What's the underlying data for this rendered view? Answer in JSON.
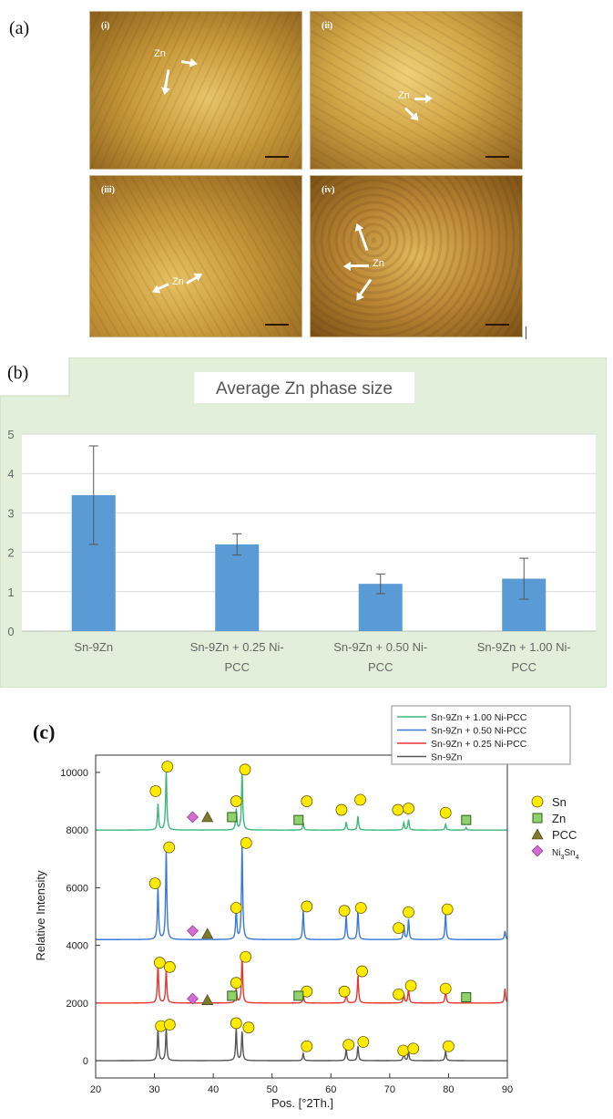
{
  "panel_labels": {
    "a": "(a)",
    "b": "(b)",
    "c": "(c)"
  },
  "micrographs": [
    {
      "label": "(i)",
      "annotation": "Zn"
    },
    {
      "label": "(ii)",
      "annotation": "Zn"
    },
    {
      "label": "(iii)",
      "annotation": "Zn"
    },
    {
      "label": "(iv)",
      "annotation": "Zn"
    }
  ],
  "colors": {
    "bar": "#5b9bd5",
    "panel_bg": "#e2efda",
    "sn_marker": "#ffea00",
    "zn_marker": "#8fd16a",
    "pcc_marker": "#7a7a2a",
    "ni3sn4_marker": "#d56ad5"
  },
  "chart_data": [
    {
      "type": "bar",
      "title": "Average Zn phase size",
      "categories": [
        "Sn-9Zn",
        "Sn-9Zn + 0.25 Ni-PCC",
        "Sn-9Zn + 0.50 Ni-PCC",
        "Sn-9Zn + 1.00 Ni-PCC"
      ],
      "category_lines": [
        [
          "Sn-9Zn"
        ],
        [
          "Sn-9Zn + 0.25 Ni-",
          "PCC"
        ],
        [
          "Sn-9Zn + 0.50 Ni-",
          "PCC"
        ],
        [
          "Sn-9Zn + 1.00 Ni-",
          "PCC"
        ]
      ],
      "values": [
        3.45,
        2.2,
        1.2,
        1.33
      ],
      "error": [
        1.25,
        0.27,
        0.25,
        0.52
      ],
      "ylim": [
        0,
        5
      ],
      "yticks": [
        0,
        1,
        2,
        3,
        4,
        5
      ],
      "grid": true
    },
    {
      "type": "line",
      "xlabel": "Pos. [°2Th.]",
      "ylabel": "Relative Intensity",
      "xlim": [
        20,
        90
      ],
      "ylim": [
        -600,
        10600
      ],
      "xticks": [
        20,
        30,
        40,
        50,
        60,
        70,
        80,
        90
      ],
      "yticks": [
        0,
        2000,
        4000,
        6000,
        8000,
        10000
      ],
      "legend_position": "top-right",
      "series": [
        {
          "name": "Sn-9Zn + 1.00 Ni-PCC",
          "color": "#3cb878",
          "baseline": 8000,
          "peaks": [
            [
              30.6,
              900
            ],
            [
              32.0,
              2050
            ],
            [
              43.9,
              720
            ],
            [
              44.9,
              2000
            ],
            [
              55.3,
              230
            ],
            [
              62.6,
              280
            ],
            [
              64.6,
              480
            ],
            [
              72.4,
              260
            ],
            [
              73.2,
              360
            ],
            [
              79.5,
              200
            ],
            [
              83.0,
              90
            ]
          ]
        },
        {
          "name": "Sn-9Zn + 0.50 Ni-PCC",
          "color": "#3a78d8",
          "baseline": 4200,
          "peaks": [
            [
              30.6,
              1800
            ],
            [
              32.0,
              3050
            ],
            [
              43.9,
              1050
            ],
            [
              44.9,
              3250
            ],
            [
              55.3,
              1000
            ],
            [
              62.6,
              820
            ],
            [
              64.6,
              1000
            ],
            [
              72.4,
              500
            ],
            [
              73.2,
              700
            ],
            [
              79.5,
              900
            ],
            [
              89.6,
              300
            ]
          ]
        },
        {
          "name": "Sn-9Zn + 0.25 Ni-PCC",
          "color": "#e8352e",
          "baseline": 2000,
          "peaks": [
            [
              30.6,
              1350
            ],
            [
              32.0,
              1150
            ],
            [
              43.9,
              500
            ],
            [
              44.9,
              1600
            ],
            [
              55.3,
              300
            ],
            [
              62.6,
              350
            ],
            [
              64.6,
              950
            ],
            [
              72.4,
              300
            ],
            [
              73.2,
              520
            ],
            [
              79.5,
              450
            ],
            [
              89.6,
              500
            ]
          ]
        },
        {
          "name": "Sn-9Zn",
          "color": "#555555",
          "baseline": 0,
          "peaks": [
            [
              30.6,
              1100
            ],
            [
              32.0,
              1100
            ],
            [
              43.9,
              1100
            ],
            [
              44.9,
              1000
            ],
            [
              55.3,
              250
            ],
            [
              62.6,
              400
            ],
            [
              64.6,
              500
            ],
            [
              72.4,
              300
            ],
            [
              73.2,
              300
            ],
            [
              79.5,
              330
            ]
          ]
        }
      ],
      "marker_legend": [
        {
          "name": "Sn",
          "shape": "circle"
        },
        {
          "name": "Zn",
          "shape": "square"
        },
        {
          "name": "PCC",
          "shape": "triangle"
        },
        {
          "name": "Ni3Sn4",
          "shape": "diamond"
        }
      ],
      "markers": [
        {
          "shape": "circle",
          "points": [
            [
              30.2,
              9350
            ],
            [
              32.2,
              10200
            ],
            [
              43.9,
              9000
            ],
            [
              45.4,
              10100
            ],
            [
              55.9,
              9000
            ],
            [
              61.8,
              8700
            ],
            [
              65.0,
              9050
            ],
            [
              71.4,
              8700
            ],
            [
              73.2,
              8750
            ],
            [
              79.5,
              8600
            ],
            [
              30.1,
              6150
            ],
            [
              32.5,
              7400
            ],
            [
              43.9,
              5300
            ],
            [
              45.6,
              7550
            ],
            [
              55.9,
              5350
            ],
            [
              62.3,
              5200
            ],
            [
              65.1,
              5300
            ],
            [
              71.5,
              4600
            ],
            [
              73.2,
              5150
            ],
            [
              79.8,
              5250
            ],
            [
              30.9,
              3400
            ],
            [
              32.6,
              3250
            ],
            [
              43.9,
              2700
            ],
            [
              45.5,
              3600
            ],
            [
              55.9,
              2400
            ],
            [
              62.3,
              2400
            ],
            [
              65.3,
              3100
            ],
            [
              71.5,
              2300
            ],
            [
              73.6,
              2600
            ],
            [
              79.5,
              2500
            ],
            [
              31.1,
              1200
            ],
            [
              32.6,
              1250
            ],
            [
              43.9,
              1300
            ],
            [
              46.0,
              1150
            ],
            [
              55.9,
              500
            ],
            [
              63.0,
              550
            ],
            [
              65.5,
              650
            ],
            [
              72.3,
              350
            ],
            [
              74.0,
              420
            ],
            [
              80.0,
              500
            ]
          ]
        },
        {
          "shape": "square",
          "points": [
            [
              43.2,
              8450
            ],
            [
              54.5,
              8350
            ],
            [
              83.0,
              8350
            ],
            [
              43.2,
              2250
            ],
            [
              54.5,
              2250
            ],
            [
              83.0,
              2200
            ]
          ]
        },
        {
          "shape": "triangle",
          "points": [
            [
              39.0,
              8450
            ],
            [
              39.0,
              4400
            ],
            [
              39.0,
              2100
            ]
          ]
        },
        {
          "shape": "diamond",
          "points": [
            [
              36.5,
              8450
            ],
            [
              36.5,
              4500
            ],
            [
              36.5,
              2150
            ]
          ]
        }
      ]
    }
  ]
}
